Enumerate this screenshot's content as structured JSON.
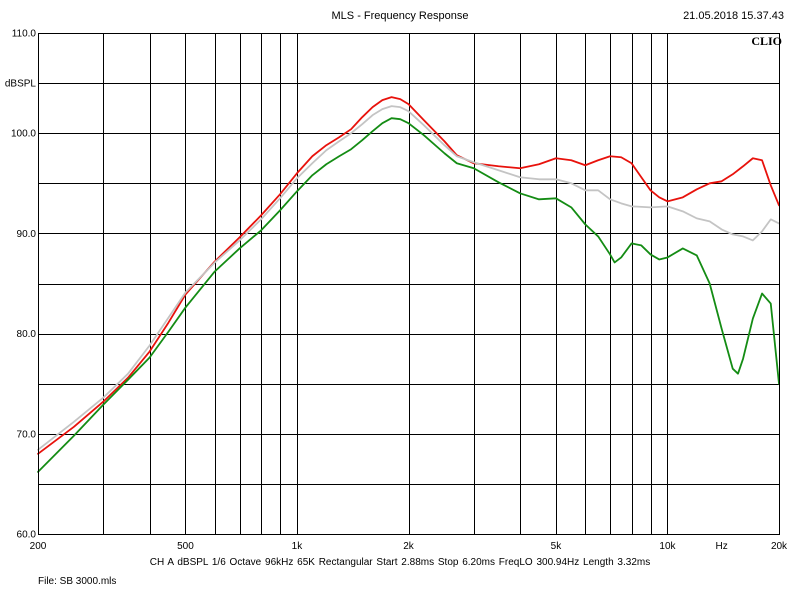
{
  "header": {
    "title": "MLS - Frequency Response",
    "timestamp": "21.05.2018 15.37.43",
    "brand": "CLIO"
  },
  "footer": {
    "info": "CH A  dBSPL  1/6 Octave  96kHz  65K  Rectangular  Start 2.88ms  Stop 6.20ms  FreqLO 300.94Hz  Length 3.32ms",
    "file": "File: SB 3000.mls"
  },
  "colors": {
    "grid": "#000000",
    "red": "#e8120c",
    "gray": "#c4c4c4",
    "green": "#148c14"
  },
  "chart_data": {
    "type": "line",
    "title": "MLS - Frequency Response",
    "xlabel": "Hz",
    "ylabel": "dBSPL",
    "xscale": "log",
    "xlim": [
      200,
      20000
    ],
    "ylim": [
      60,
      110
    ],
    "grid": true,
    "x_tick_labels": [
      {
        "value": 200,
        "label": "200"
      },
      {
        "value": 500,
        "label": "500"
      },
      {
        "value": 1000,
        "label": "1k"
      },
      {
        "value": 2000,
        "label": "2k"
      },
      {
        "value": 5000,
        "label": "5k"
      },
      {
        "value": 10000,
        "label": "10k"
      },
      {
        "value": 20000,
        "label": "20k"
      }
    ],
    "y_tick_labels": [
      {
        "value": 60,
        "label": "60.0"
      },
      {
        "value": 70,
        "label": "70.0"
      },
      {
        "value": 80,
        "label": "80.0"
      },
      {
        "value": 90,
        "label": "90.0"
      },
      {
        "value": 100,
        "label": "100.0"
      },
      {
        "value": 110,
        "label": "110.0"
      }
    ],
    "series": [
      {
        "color": "#e8120c",
        "points": [
          [
            200,
            68
          ],
          [
            250,
            70.7
          ],
          [
            300,
            73.2
          ],
          [
            350,
            75.6
          ],
          [
            400,
            78.2
          ],
          [
            450,
            81.1
          ],
          [
            500,
            83.9
          ],
          [
            600,
            87.2
          ],
          [
            700,
            89.6
          ],
          [
            800,
            91.8
          ],
          [
            900,
            93.9
          ],
          [
            1000,
            96
          ],
          [
            1100,
            97.7
          ],
          [
            1200,
            98.8
          ],
          [
            1300,
            99.6
          ],
          [
            1400,
            100.4
          ],
          [
            1500,
            101.6
          ],
          [
            1600,
            102.6
          ],
          [
            1700,
            103.3
          ],
          [
            1800,
            103.6
          ],
          [
            1900,
            103.4
          ],
          [
            2000,
            102.9
          ],
          [
            2200,
            101.3
          ],
          [
            2500,
            99.2
          ],
          [
            2700,
            97.8
          ],
          [
            3000,
            97
          ],
          [
            3500,
            96.7
          ],
          [
            4000,
            96.5
          ],
          [
            4500,
            96.9
          ],
          [
            5000,
            97.5
          ],
          [
            5500,
            97.3
          ],
          [
            6000,
            96.8
          ],
          [
            6500,
            97.3
          ],
          [
            7000,
            97.7
          ],
          [
            7500,
            97.6
          ],
          [
            8000,
            97
          ],
          [
            8500,
            95.6
          ],
          [
            9000,
            94.3
          ],
          [
            9500,
            93.6
          ],
          [
            10000,
            93.2
          ],
          [
            11000,
            93.6
          ],
          [
            12000,
            94.4
          ],
          [
            13000,
            95
          ],
          [
            14000,
            95.2
          ],
          [
            15000,
            95.9
          ],
          [
            16000,
            96.7
          ],
          [
            17000,
            97.5
          ],
          [
            18000,
            97.3
          ],
          [
            19000,
            94.8
          ],
          [
            20000,
            92.8
          ]
        ]
      },
      {
        "color": "#c4c4c4",
        "points": [
          [
            200,
            68.4
          ],
          [
            250,
            71.2
          ],
          [
            300,
            73.6
          ],
          [
            350,
            76
          ],
          [
            400,
            78.8
          ],
          [
            450,
            81.6
          ],
          [
            500,
            84.1
          ],
          [
            600,
            87.1
          ],
          [
            700,
            89.3
          ],
          [
            800,
            91.4
          ],
          [
            900,
            93.5
          ],
          [
            1000,
            95.5
          ],
          [
            1100,
            97
          ],
          [
            1200,
            98.3
          ],
          [
            1300,
            99.2
          ],
          [
            1400,
            100
          ],
          [
            1500,
            100.9
          ],
          [
            1600,
            101.8
          ],
          [
            1700,
            102.4
          ],
          [
            1800,
            102.7
          ],
          [
            1900,
            102.6
          ],
          [
            2000,
            102.2
          ],
          [
            2200,
            100.8
          ],
          [
            2500,
            98.8
          ],
          [
            2700,
            97.7
          ],
          [
            3000,
            97.1
          ],
          [
            3500,
            96.3
          ],
          [
            4000,
            95.6
          ],
          [
            4500,
            95.4
          ],
          [
            5000,
            95.4
          ],
          [
            5500,
            95
          ],
          [
            6000,
            94.3
          ],
          [
            6500,
            94.3
          ],
          [
            7000,
            93.4
          ],
          [
            7500,
            93
          ],
          [
            8000,
            92.7
          ],
          [
            9000,
            92.6
          ],
          [
            10000,
            92.7
          ],
          [
            11000,
            92.2
          ],
          [
            12000,
            91.5
          ],
          [
            13000,
            91.2
          ],
          [
            14000,
            90.4
          ],
          [
            15000,
            89.9
          ],
          [
            16000,
            89.7
          ],
          [
            17000,
            89.3
          ],
          [
            18000,
            90.2
          ],
          [
            19000,
            91.4
          ],
          [
            20000,
            91
          ]
        ]
      },
      {
        "color": "#148c14",
        "points": [
          [
            200,
            66.2
          ],
          [
            250,
            69.8
          ],
          [
            300,
            72.9
          ],
          [
            350,
            75.4
          ],
          [
            400,
            77.6
          ],
          [
            450,
            80.2
          ],
          [
            500,
            82.6
          ],
          [
            600,
            86.2
          ],
          [
            700,
            88.5
          ],
          [
            800,
            90.3
          ],
          [
            900,
            92.3
          ],
          [
            1000,
            94.2
          ],
          [
            1100,
            95.8
          ],
          [
            1200,
            96.9
          ],
          [
            1300,
            97.7
          ],
          [
            1400,
            98.4
          ],
          [
            1500,
            99.3
          ],
          [
            1600,
            100.2
          ],
          [
            1700,
            101
          ],
          [
            1800,
            101.5
          ],
          [
            1900,
            101.4
          ],
          [
            2000,
            101
          ],
          [
            2200,
            99.8
          ],
          [
            2500,
            98
          ],
          [
            2700,
            97
          ],
          [
            3000,
            96.5
          ],
          [
            3500,
            95.1
          ],
          [
            4000,
            94
          ],
          [
            4500,
            93.4
          ],
          [
            5000,
            93.5
          ],
          [
            5500,
            92.6
          ],
          [
            6000,
            90.9
          ],
          [
            6500,
            89.7
          ],
          [
            7000,
            87.9
          ],
          [
            7200,
            87.1
          ],
          [
            7500,
            87.6
          ],
          [
            8000,
            89
          ],
          [
            8500,
            88.8
          ],
          [
            9000,
            87.9
          ],
          [
            9500,
            87.4
          ],
          [
            10000,
            87.6
          ],
          [
            11000,
            88.5
          ],
          [
            12000,
            87.8
          ],
          [
            13000,
            85
          ],
          [
            14000,
            80.5
          ],
          [
            15000,
            76.5
          ],
          [
            15500,
            76
          ],
          [
            16000,
            77.5
          ],
          [
            17000,
            81.5
          ],
          [
            18000,
            84
          ],
          [
            19000,
            83
          ],
          [
            20000,
            75
          ]
        ]
      }
    ]
  }
}
